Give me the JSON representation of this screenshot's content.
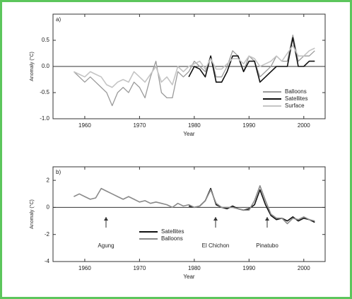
{
  "chart_data": [
    {
      "type": "line",
      "title": "a)",
      "x_label": "Year",
      "y_label": "Anomaly (°C)",
      "x": [
        1958,
        1959,
        1960,
        1961,
        1962,
        1963,
        1964,
        1965,
        1966,
        1967,
        1968,
        1969,
        1970,
        1971,
        1972,
        1973,
        1974,
        1975,
        1976,
        1977,
        1978,
        1979,
        1980,
        1981,
        1982,
        1983,
        1984,
        1985,
        1986,
        1987,
        1988,
        1989,
        1990,
        1991,
        1992,
        1993,
        1994,
        1995,
        1996,
        1997,
        1998,
        1999,
        2000,
        2001,
        2002
      ],
      "series": [
        {
          "name": "Balloons",
          "color": "#9a9a9a",
          "values": [
            -0.1,
            -0.2,
            -0.3,
            -0.2,
            -0.3,
            -0.4,
            -0.5,
            -0.75,
            -0.5,
            -0.4,
            -0.5,
            -0.3,
            -0.4,
            -0.6,
            -0.2,
            0.1,
            -0.5,
            -0.6,
            -0.6,
            -0.1,
            -0.2,
            -0.1,
            0.1,
            0.0,
            -0.1,
            0.2,
            -0.2,
            -0.2,
            0.0,
            0.3,
            0.2,
            -0.1,
            0.2,
            0.1,
            -0.2,
            -0.1,
            0.0,
            0.2,
            0.1,
            0.1,
            0.6,
            0.1,
            0.2,
            0.2,
            0.3
          ]
        },
        {
          "name": "Satellites",
          "color": "#111111",
          "values": [
            null,
            null,
            null,
            null,
            null,
            null,
            null,
            null,
            null,
            null,
            null,
            null,
            null,
            null,
            null,
            null,
            null,
            null,
            null,
            null,
            null,
            -0.2,
            0.0,
            -0.05,
            -0.2,
            0.2,
            -0.3,
            -0.3,
            -0.1,
            0.2,
            0.2,
            -0.1,
            0.1,
            0.1,
            -0.3,
            -0.2,
            -0.1,
            0.0,
            0.0,
            0.0,
            0.55,
            0.0,
            0.0,
            0.1,
            0.1
          ]
        },
        {
          "name": "Surface",
          "color": "#c4c4c4",
          "values": [
            -0.1,
            -0.15,
            -0.2,
            -0.1,
            -0.15,
            -0.2,
            -0.35,
            -0.4,
            -0.3,
            -0.25,
            -0.3,
            -0.1,
            -0.2,
            -0.3,
            -0.15,
            0.0,
            -0.3,
            -0.2,
            -0.35,
            0.0,
            -0.1,
            0.0,
            0.05,
            0.1,
            -0.05,
            0.15,
            -0.05,
            -0.05,
            0.05,
            0.15,
            0.15,
            0.05,
            0.2,
            0.15,
            0.0,
            0.05,
            0.1,
            0.2,
            0.1,
            0.25,
            0.4,
            0.2,
            0.2,
            0.3,
            0.35
          ]
        }
      ],
      "xlim": [
        1954.2,
        2003.9
      ],
      "ylim": [
        -1.0,
        1.0
      ],
      "xticks": [
        1960,
        1970,
        1980,
        1990,
        2000
      ],
      "yticks": [
        0.5,
        {
          "value": 0,
          "label": "0.0"
        },
        -0.5,
        {
          "value": -1,
          "label": "-1.0"
        }
      ],
      "legend": "lower right"
    },
    {
      "type": "line",
      "title": "b)",
      "x_label": "Year",
      "y_label": "Anomaly (°C)",
      "x": [
        1958,
        1959,
        1960,
        1961,
        1962,
        1963,
        1964,
        1965,
        1966,
        1967,
        1968,
        1969,
        1970,
        1971,
        1972,
        1973,
        1974,
        1975,
        1976,
        1977,
        1978,
        1979,
        1980,
        1981,
        1982,
        1983,
        1984,
        1985,
        1986,
        1987,
        1988,
        1989,
        1990,
        1991,
        1992,
        1993,
        1994,
        1995,
        1996,
        1997,
        1998,
        1999,
        2000,
        2001,
        2002
      ],
      "series": [
        {
          "name": "Satellites",
          "color": "#111111",
          "values": [
            null,
            null,
            null,
            null,
            null,
            null,
            null,
            null,
            null,
            null,
            null,
            null,
            null,
            null,
            null,
            null,
            null,
            null,
            null,
            null,
            null,
            0.1,
            0.0,
            0.1,
            0.5,
            1.4,
            0.2,
            0.0,
            -0.1,
            0.1,
            -0.1,
            -0.2,
            -0.1,
            0.2,
            1.3,
            0.2,
            -0.6,
            -0.9,
            -0.8,
            -1.0,
            -0.7,
            -1.0,
            -0.8,
            -0.9,
            -1.1
          ]
        },
        {
          "name": "Balloons",
          "color": "#8a8a8a",
          "values": [
            0.8,
            1.0,
            0.8,
            0.6,
            0.7,
            1.4,
            1.2,
            1.0,
            0.8,
            0.6,
            0.8,
            0.6,
            0.4,
            0.5,
            0.3,
            0.4,
            0.3,
            0.2,
            0.0,
            0.3,
            0.1,
            0.2,
            0.0,
            0.1,
            0.5,
            1.3,
            0.3,
            0.0,
            0.0,
            0.0,
            -0.1,
            -0.2,
            -0.2,
            0.5,
            1.6,
            0.5,
            -0.5,
            -0.8,
            -0.8,
            -1.2,
            -0.8,
            -0.9,
            -0.7,
            -0.9,
            -1.0
          ]
        }
      ],
      "xlim": [
        1954.2,
        2003.9
      ],
      "ylim": [
        -4,
        3
      ],
      "xticks": [
        1960,
        1970,
        1980,
        1990,
        2000
      ],
      "yticks": [
        2,
        0,
        -2,
        -4
      ],
      "annotations": [
        "Agung",
        "El Chichon",
        "Pinatubo"
      ],
      "legend": "lower center"
    }
  ]
}
